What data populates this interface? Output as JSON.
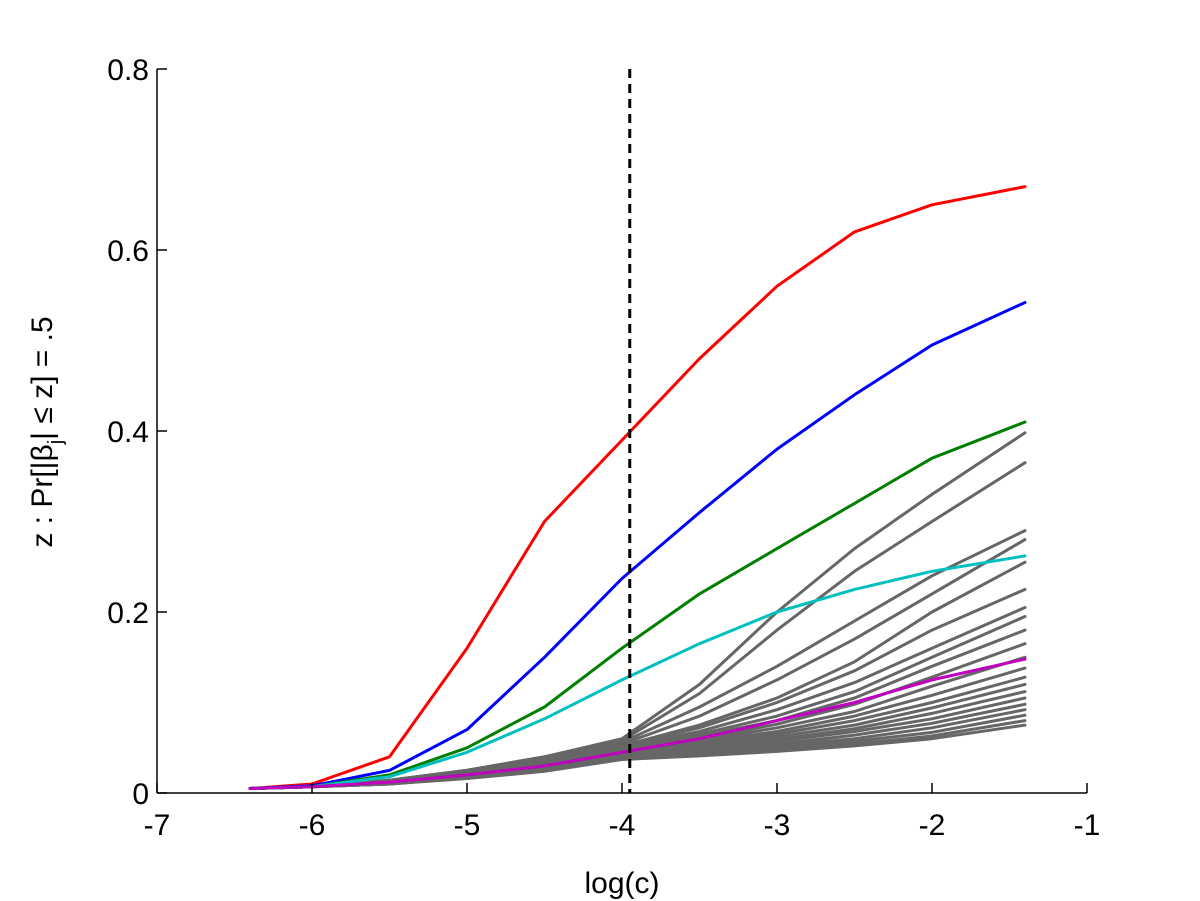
{
  "chart_data": {
    "type": "line",
    "title": "",
    "xlabel": "log(c)",
    "ylabel": "z : Pr[|β_j| ≤ z] = .5",
    "ylabel_parts": {
      "prefix": "z : Pr[|β",
      "subscript": "j",
      "suffix": "| ≤ z] = .5"
    },
    "xlim": [
      -7,
      -1
    ],
    "ylim": [
      0,
      0.8
    ],
    "xticks": [
      -7,
      -6,
      -5,
      -4,
      -3,
      -2,
      -1
    ],
    "yticks": [
      0,
      0.2,
      0.4,
      0.6,
      0.8
    ],
    "xtick_labels": [
      "-7",
      "-6",
      "-5",
      "-4",
      "-3",
      "-2",
      "-1"
    ],
    "ytick_labels": [
      "0",
      "0.2",
      "0.4",
      "0.6",
      "0.8"
    ],
    "grid": false,
    "x_range": [
      -6.4,
      -1.4
    ],
    "vline": {
      "x": -3.95,
      "style": "dashed",
      "color": "#000000"
    },
    "series": [
      {
        "color": "#ff0000",
        "x": [
          -6.4,
          -6.0,
          -5.5,
          -5.0,
          -4.5,
          -4.0,
          -3.5,
          -3.0,
          -2.5,
          -2.0,
          -1.4
        ],
        "values": [
          0.005,
          0.01,
          0.04,
          0.16,
          0.3,
          0.39,
          0.48,
          0.56,
          0.62,
          0.65,
          0.67
        ]
      },
      {
        "color": "#0000ff",
        "x": [
          -6.4,
          -6.0,
          -5.5,
          -5.0,
          -4.5,
          -4.0,
          -3.5,
          -3.0,
          -2.5,
          -2.0,
          -1.4
        ],
        "values": [
          0.005,
          0.008,
          0.025,
          0.07,
          0.15,
          0.237,
          0.31,
          0.38,
          0.44,
          0.495,
          0.542
        ]
      },
      {
        "color": "#007f00",
        "x": [
          -6.4,
          -6.0,
          -5.5,
          -5.0,
          -4.5,
          -4.0,
          -3.5,
          -3.0,
          -2.5,
          -2.0,
          -1.4
        ],
        "values": [
          0.005,
          0.007,
          0.02,
          0.05,
          0.095,
          0.16,
          0.22,
          0.27,
          0.32,
          0.37,
          0.41
        ]
      },
      {
        "color": "#00bfbf",
        "x": [
          -6.4,
          -6.0,
          -5.5,
          -5.0,
          -4.5,
          -4.0,
          -3.5,
          -3.0,
          -2.5,
          -2.0,
          -1.4
        ],
        "values": [
          0.005,
          0.007,
          0.018,
          0.045,
          0.082,
          0.125,
          0.165,
          0.2,
          0.225,
          0.245,
          0.262
        ]
      },
      {
        "color": "#bf00bf",
        "x": [
          -6.4,
          -6.0,
          -5.5,
          -5.0,
          -4.5,
          -4.0,
          -3.5,
          -3.0,
          -2.5,
          -2.0,
          -1.4
        ],
        "values": [
          0.005,
          0.007,
          0.012,
          0.02,
          0.03,
          0.045,
          0.06,
          0.08,
          0.1,
          0.125,
          0.148
        ]
      },
      {
        "color": "#666666",
        "x": [
          -6.4,
          -6.0,
          -5.5,
          -5.0,
          -4.5,
          -4.0,
          -3.5,
          -3.0,
          -2.5,
          -2.0,
          -1.4
        ],
        "values": [
          0.005,
          0.007,
          0.014,
          0.025,
          0.04,
          0.06,
          0.12,
          0.2,
          0.27,
          0.33,
          0.398
        ]
      },
      {
        "color": "#666666",
        "x": [
          -6.4,
          -6.0,
          -5.5,
          -5.0,
          -4.5,
          -4.0,
          -3.5,
          -3.0,
          -2.5,
          -2.0,
          -1.4
        ],
        "values": [
          0.005,
          0.007,
          0.014,
          0.025,
          0.04,
          0.058,
          0.11,
          0.18,
          0.245,
          0.3,
          0.365
        ]
      },
      {
        "color": "#666666",
        "x": [
          -6.4,
          -6.0,
          -5.5,
          -5.0,
          -4.5,
          -4.0,
          -3.5,
          -3.0,
          -2.5,
          -2.0,
          -1.4
        ],
        "values": [
          0.005,
          0.007,
          0.014,
          0.025,
          0.04,
          0.056,
          0.095,
          0.14,
          0.19,
          0.24,
          0.29
        ]
      },
      {
        "color": "#666666",
        "x": [
          -6.4,
          -6.0,
          -5.5,
          -5.0,
          -4.5,
          -4.0,
          -3.5,
          -3.0,
          -2.5,
          -2.0,
          -1.4
        ],
        "values": [
          0.005,
          0.007,
          0.014,
          0.025,
          0.039,
          0.054,
          0.085,
          0.125,
          0.17,
          0.22,
          0.28
        ]
      },
      {
        "color": "#666666",
        "x": [
          -6.4,
          -6.0,
          -5.5,
          -5.0,
          -4.5,
          -4.0,
          -3.5,
          -3.0,
          -2.5,
          -2.0,
          -1.4
        ],
        "values": [
          0.005,
          0.007,
          0.013,
          0.024,
          0.038,
          0.052,
          0.075,
          0.105,
          0.145,
          0.2,
          0.255
        ]
      },
      {
        "color": "#666666",
        "x": [
          -6.4,
          -6.0,
          -5.5,
          -5.0,
          -4.5,
          -4.0,
          -3.5,
          -3.0,
          -2.5,
          -2.0,
          -1.4
        ],
        "values": [
          0.005,
          0.007,
          0.013,
          0.024,
          0.037,
          0.052,
          0.072,
          0.1,
          0.135,
          0.18,
          0.225
        ]
      },
      {
        "color": "#666666",
        "x": [
          -6.4,
          -6.0,
          -5.5,
          -5.0,
          -4.5,
          -4.0,
          -3.5,
          -3.0,
          -2.5,
          -2.0,
          -1.4
        ],
        "values": [
          0.005,
          0.007,
          0.013,
          0.023,
          0.036,
          0.051,
          0.068,
          0.092,
          0.122,
          0.16,
          0.205
        ]
      },
      {
        "color": "#666666",
        "x": [
          -6.4,
          -6.0,
          -5.5,
          -5.0,
          -4.5,
          -4.0,
          -3.5,
          -3.0,
          -2.5,
          -2.0,
          -1.4
        ],
        "values": [
          0.005,
          0.007,
          0.013,
          0.023,
          0.035,
          0.05,
          0.065,
          0.085,
          0.112,
          0.15,
          0.195
        ]
      },
      {
        "color": "#666666",
        "x": [
          -6.4,
          -6.0,
          -5.5,
          -5.0,
          -4.5,
          -4.0,
          -3.5,
          -3.0,
          -2.5,
          -2.0,
          -1.4
        ],
        "values": [
          0.005,
          0.007,
          0.012,
          0.022,
          0.034,
          0.049,
          0.063,
          0.08,
          0.105,
          0.14,
          0.18
        ]
      },
      {
        "color": "#666666",
        "x": [
          -6.4,
          -6.0,
          -5.5,
          -5.0,
          -4.5,
          -4.0,
          -3.5,
          -3.0,
          -2.5,
          -2.0,
          -1.4
        ],
        "values": [
          0.005,
          0.007,
          0.012,
          0.022,
          0.033,
          0.048,
          0.06,
          0.076,
          0.098,
          0.128,
          0.165
        ]
      },
      {
        "color": "#666666",
        "x": [
          -6.4,
          -6.0,
          -5.5,
          -5.0,
          -4.5,
          -4.0,
          -3.5,
          -3.0,
          -2.5,
          -2.0,
          -1.4
        ],
        "values": [
          0.005,
          0.007,
          0.012,
          0.021,
          0.032,
          0.047,
          0.058,
          0.072,
          0.09,
          0.118,
          0.15
        ]
      },
      {
        "color": "#666666",
        "x": [
          -6.4,
          -6.0,
          -5.5,
          -5.0,
          -4.5,
          -4.0,
          -3.5,
          -3.0,
          -2.5,
          -2.0,
          -1.4
        ],
        "values": [
          0.005,
          0.007,
          0.012,
          0.021,
          0.031,
          0.046,
          0.056,
          0.068,
          0.085,
          0.108,
          0.138
        ]
      },
      {
        "color": "#666666",
        "x": [
          -6.4,
          -6.0,
          -5.5,
          -5.0,
          -4.5,
          -4.0,
          -3.5,
          -3.0,
          -2.5,
          -2.0,
          -1.4
        ],
        "values": [
          0.005,
          0.007,
          0.011,
          0.02,
          0.03,
          0.045,
          0.054,
          0.065,
          0.08,
          0.1,
          0.128
        ]
      },
      {
        "color": "#666666",
        "x": [
          -6.4,
          -6.0,
          -5.5,
          -5.0,
          -4.5,
          -4.0,
          -3.5,
          -3.0,
          -2.5,
          -2.0,
          -1.4
        ],
        "values": [
          0.005,
          0.007,
          0.011,
          0.02,
          0.03,
          0.044,
          0.052,
          0.062,
          0.075,
          0.094,
          0.12
        ]
      },
      {
        "color": "#666666",
        "x": [
          -6.4,
          -6.0,
          -5.5,
          -5.0,
          -4.5,
          -4.0,
          -3.5,
          -3.0,
          -2.5,
          -2.0,
          -1.4
        ],
        "values": [
          0.005,
          0.007,
          0.011,
          0.019,
          0.029,
          0.043,
          0.05,
          0.059,
          0.071,
          0.088,
          0.112
        ]
      },
      {
        "color": "#666666",
        "x": [
          -6.4,
          -6.0,
          -5.5,
          -5.0,
          -4.5,
          -4.0,
          -3.5,
          -3.0,
          -2.5,
          -2.0,
          -1.4
        ],
        "values": [
          0.005,
          0.007,
          0.011,
          0.019,
          0.028,
          0.042,
          0.049,
          0.057,
          0.068,
          0.082,
          0.105
        ]
      },
      {
        "color": "#666666",
        "x": [
          -6.4,
          -6.0,
          -5.5,
          -5.0,
          -4.5,
          -4.0,
          -3.5,
          -3.0,
          -2.5,
          -2.0,
          -1.4
        ],
        "values": [
          0.005,
          0.007,
          0.01,
          0.018,
          0.027,
          0.041,
          0.047,
          0.054,
          0.064,
          0.077,
          0.098
        ]
      },
      {
        "color": "#666666",
        "x": [
          -6.4,
          -6.0,
          -5.5,
          -5.0,
          -4.5,
          -4.0,
          -3.5,
          -3.0,
          -2.5,
          -2.0,
          -1.4
        ],
        "values": [
          0.005,
          0.007,
          0.01,
          0.018,
          0.027,
          0.04,
          0.045,
          0.052,
          0.06,
          0.072,
          0.092
        ]
      },
      {
        "color": "#666666",
        "x": [
          -6.4,
          -6.0,
          -5.5,
          -5.0,
          -4.5,
          -4.0,
          -3.5,
          -3.0,
          -2.5,
          -2.0,
          -1.4
        ],
        "values": [
          0.005,
          0.007,
          0.01,
          0.017,
          0.026,
          0.039,
          0.044,
          0.05,
          0.057,
          0.067,
          0.086
        ]
      },
      {
        "color": "#666666",
        "x": [
          -6.4,
          -6.0,
          -5.5,
          -5.0,
          -4.5,
          -4.0,
          -3.5,
          -3.0,
          -2.5,
          -2.0,
          -1.4
        ],
        "values": [
          0.005,
          0.007,
          0.01,
          0.017,
          0.025,
          0.038,
          0.042,
          0.048,
          0.054,
          0.063,
          0.08
        ]
      },
      {
        "color": "#666666",
        "x": [
          -6.4,
          -6.0,
          -5.5,
          -5.0,
          -4.5,
          -4.0,
          -3.5,
          -3.0,
          -2.5,
          -2.0,
          -1.4
        ],
        "values": [
          0.005,
          0.007,
          0.01,
          0.016,
          0.024,
          0.037,
          0.041,
          0.046,
          0.052,
          0.06,
          0.075
        ]
      }
    ]
  }
}
